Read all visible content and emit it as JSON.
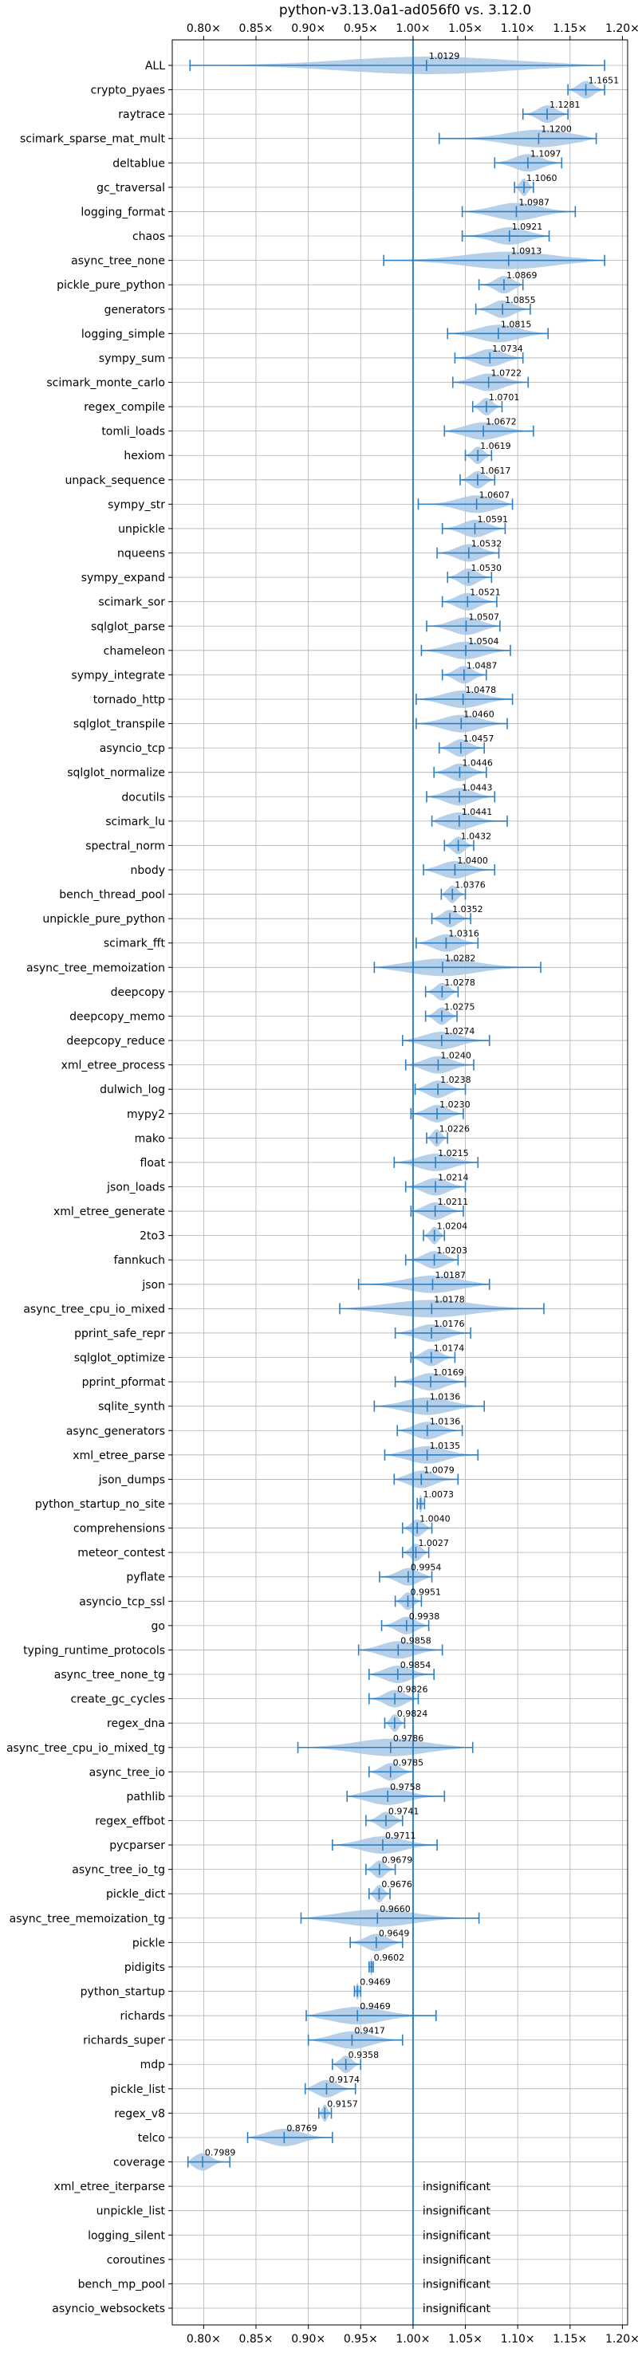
{
  "chart_data": {
    "type": "violin",
    "title": "python-v3.13.0a1-ad056f0 vs. 3.12.0",
    "xlim": [
      0.77,
      1.205
    ],
    "xticks": [
      0.8,
      0.85,
      0.9,
      0.95,
      1.0,
      1.05,
      1.1,
      1.15,
      1.2
    ],
    "xtick_labels": [
      "0.80×",
      "0.85×",
      "0.90×",
      "0.95×",
      "1.00×",
      "1.05×",
      "1.10×",
      "1.15×",
      "1.20×"
    ],
    "reference_line": 1.0,
    "grid": true,
    "insignificant_text": "insignificant",
    "benchmarks": [
      {
        "name": "ALL",
        "value": 1.0129,
        "min": 0.787,
        "max": 1.183
      },
      {
        "name": "crypto_pyaes",
        "value": 1.1651,
        "min": 1.148,
        "max": 1.183
      },
      {
        "name": "raytrace",
        "value": 1.1281,
        "min": 1.105,
        "max": 1.148
      },
      {
        "name": "scimark_sparse_mat_mult",
        "value": 1.12,
        "min": 1.025,
        "max": 1.175
      },
      {
        "name": "deltablue",
        "value": 1.1097,
        "min": 1.078,
        "max": 1.142
      },
      {
        "name": "gc_traversal",
        "value": 1.106,
        "min": 1.097,
        "max": 1.115
      },
      {
        "name": "logging_format",
        "value": 1.0987,
        "min": 1.047,
        "max": 1.155
      },
      {
        "name": "chaos",
        "value": 1.0921,
        "min": 1.047,
        "max": 1.13
      },
      {
        "name": "async_tree_none",
        "value": 1.0913,
        "min": 0.972,
        "max": 1.183
      },
      {
        "name": "pickle_pure_python",
        "value": 1.0869,
        "min": 1.063,
        "max": 1.105
      },
      {
        "name": "generators",
        "value": 1.0855,
        "min": 1.06,
        "max": 1.112
      },
      {
        "name": "logging_simple",
        "value": 1.0815,
        "min": 1.033,
        "max": 1.129
      },
      {
        "name": "sympy_sum",
        "value": 1.0734,
        "min": 1.04,
        "max": 1.105
      },
      {
        "name": "scimark_monte_carlo",
        "value": 1.0722,
        "min": 1.038,
        "max": 1.11
      },
      {
        "name": "regex_compile",
        "value": 1.0701,
        "min": 1.057,
        "max": 1.085
      },
      {
        "name": "tomli_loads",
        "value": 1.0672,
        "min": 1.03,
        "max": 1.115
      },
      {
        "name": "hexiom",
        "value": 1.0619,
        "min": 1.05,
        "max": 1.075
      },
      {
        "name": "unpack_sequence",
        "value": 1.0617,
        "min": 1.045,
        "max": 1.078
      },
      {
        "name": "sympy_str",
        "value": 1.0607,
        "min": 1.005,
        "max": 1.095
      },
      {
        "name": "unpickle",
        "value": 1.0591,
        "min": 1.028,
        "max": 1.088
      },
      {
        "name": "nqueens",
        "value": 1.0532,
        "min": 1.023,
        "max": 1.082
      },
      {
        "name": "sympy_expand",
        "value": 1.053,
        "min": 1.033,
        "max": 1.075
      },
      {
        "name": "scimark_sor",
        "value": 1.0521,
        "min": 1.028,
        "max": 1.08
      },
      {
        "name": "sqlglot_parse",
        "value": 1.0507,
        "min": 1.013,
        "max": 1.083
      },
      {
        "name": "chameleon",
        "value": 1.0504,
        "min": 1.008,
        "max": 1.093
      },
      {
        "name": "sympy_integrate",
        "value": 1.0487,
        "min": 1.028,
        "max": 1.07
      },
      {
        "name": "tornado_http",
        "value": 1.0478,
        "min": 1.003,
        "max": 1.095
      },
      {
        "name": "sqlglot_transpile",
        "value": 1.046,
        "min": 1.003,
        "max": 1.09
      },
      {
        "name": "asyncio_tcp",
        "value": 1.0457,
        "min": 1.025,
        "max": 1.068
      },
      {
        "name": "sqlglot_normalize",
        "value": 1.0446,
        "min": 1.02,
        "max": 1.07
      },
      {
        "name": "docutils",
        "value": 1.0443,
        "min": 1.013,
        "max": 1.078
      },
      {
        "name": "scimark_lu",
        "value": 1.0441,
        "min": 1.018,
        "max": 1.09
      },
      {
        "name": "spectral_norm",
        "value": 1.0432,
        "min": 1.03,
        "max": 1.058
      },
      {
        "name": "nbody",
        "value": 1.04,
        "min": 1.01,
        "max": 1.078
      },
      {
        "name": "bench_thread_pool",
        "value": 1.0376,
        "min": 1.027,
        "max": 1.05
      },
      {
        "name": "unpickle_pure_python",
        "value": 1.0352,
        "min": 1.018,
        "max": 1.055
      },
      {
        "name": "scimark_fft",
        "value": 1.0316,
        "min": 1.003,
        "max": 1.062
      },
      {
        "name": "async_tree_memoization",
        "value": 1.0282,
        "min": 0.963,
        "max": 1.122
      },
      {
        "name": "deepcopy",
        "value": 1.0278,
        "min": 1.012,
        "max": 1.043
      },
      {
        "name": "deepcopy_memo",
        "value": 1.0275,
        "min": 1.012,
        "max": 1.042
      },
      {
        "name": "deepcopy_reduce",
        "value": 1.0274,
        "min": 0.99,
        "max": 1.073
      },
      {
        "name": "xml_etree_process",
        "value": 1.024,
        "min": 0.993,
        "max": 1.058
      },
      {
        "name": "dulwich_log",
        "value": 1.0238,
        "min": 1.002,
        "max": 1.05
      },
      {
        "name": "mypy2",
        "value": 1.023,
        "min": 0.998,
        "max": 1.048
      },
      {
        "name": "mako",
        "value": 1.0226,
        "min": 1.013,
        "max": 1.033
      },
      {
        "name": "float",
        "value": 1.0215,
        "min": 0.982,
        "max": 1.062
      },
      {
        "name": "json_loads",
        "value": 1.0214,
        "min": 0.993,
        "max": 1.05
      },
      {
        "name": "xml_etree_generate",
        "value": 1.0211,
        "min": 0.998,
        "max": 1.048
      },
      {
        "name": "2to3",
        "value": 1.0204,
        "min": 1.01,
        "max": 1.03
      },
      {
        "name": "fannkuch",
        "value": 1.0203,
        "min": 0.993,
        "max": 1.043
      },
      {
        "name": "json",
        "value": 1.0187,
        "min": 0.948,
        "max": 1.073
      },
      {
        "name": "async_tree_cpu_io_mixed",
        "value": 1.0178,
        "min": 0.93,
        "max": 1.125
      },
      {
        "name": "pprint_safe_repr",
        "value": 1.0176,
        "min": 0.983,
        "max": 1.055
      },
      {
        "name": "sqlglot_optimize",
        "value": 1.0174,
        "min": 0.998,
        "max": 1.04
      },
      {
        "name": "pprint_pformat",
        "value": 1.0169,
        "min": 0.983,
        "max": 1.05
      },
      {
        "name": "sqlite_synth",
        "value": 1.0136,
        "min": 0.963,
        "max": 1.068
      },
      {
        "name": "async_generators",
        "value": 1.0136,
        "min": 0.985,
        "max": 1.047
      },
      {
        "name": "xml_etree_parse",
        "value": 1.0135,
        "min": 0.973,
        "max": 1.062
      },
      {
        "name": "json_dumps",
        "value": 1.0079,
        "min": 0.982,
        "max": 1.043
      },
      {
        "name": "python_startup_no_site",
        "value": 1.0073,
        "min": 1.004,
        "max": 1.011
      },
      {
        "name": "comprehensions",
        "value": 1.004,
        "min": 0.99,
        "max": 1.018
      },
      {
        "name": "meteor_contest",
        "value": 1.0027,
        "min": 0.99,
        "max": 1.015
      },
      {
        "name": "pyflate",
        "value": 0.9954,
        "min": 0.968,
        "max": 1.018
      },
      {
        "name": "asyncio_tcp_ssl",
        "value": 0.9951,
        "min": 0.983,
        "max": 1.008
      },
      {
        "name": "go",
        "value": 0.9938,
        "min": 0.97,
        "max": 1.015
      },
      {
        "name": "typing_runtime_protocols",
        "value": 0.9858,
        "min": 0.948,
        "max": 1.028
      },
      {
        "name": "async_tree_none_tg",
        "value": 0.9854,
        "min": 0.958,
        "max": 1.02
      },
      {
        "name": "create_gc_cycles",
        "value": 0.9826,
        "min": 0.958,
        "max": 1.005
      },
      {
        "name": "regex_dna",
        "value": 0.9824,
        "min": 0.973,
        "max": 0.992
      },
      {
        "name": "async_tree_cpu_io_mixed_tg",
        "value": 0.9786,
        "min": 0.89,
        "max": 1.057
      },
      {
        "name": "async_tree_io",
        "value": 0.9785,
        "min": 0.958,
        "max": 1.0
      },
      {
        "name": "pathlib",
        "value": 0.9758,
        "min": 0.937,
        "max": 1.03
      },
      {
        "name": "regex_effbot",
        "value": 0.9741,
        "min": 0.955,
        "max": 0.99
      },
      {
        "name": "pycparser",
        "value": 0.9711,
        "min": 0.923,
        "max": 1.023
      },
      {
        "name": "async_tree_io_tg",
        "value": 0.9679,
        "min": 0.955,
        "max": 0.983
      },
      {
        "name": "pickle_dict",
        "value": 0.9676,
        "min": 0.958,
        "max": 0.978
      },
      {
        "name": "async_tree_memoization_tg",
        "value": 0.966,
        "min": 0.893,
        "max": 1.063
      },
      {
        "name": "pickle",
        "value": 0.9649,
        "min": 0.94,
        "max": 0.99
      },
      {
        "name": "pidigits",
        "value": 0.9602,
        "min": 0.958,
        "max": 0.962
      },
      {
        "name": "python_startup",
        "value": 0.9469,
        "min": 0.944,
        "max": 0.95
      },
      {
        "name": "richards",
        "value": 0.9469,
        "min": 0.898,
        "max": 1.022
      },
      {
        "name": "richards_super",
        "value": 0.9417,
        "min": 0.9,
        "max": 0.99
      },
      {
        "name": "mdp",
        "value": 0.9358,
        "min": 0.923,
        "max": 0.95
      },
      {
        "name": "pickle_list",
        "value": 0.9174,
        "min": 0.897,
        "max": 0.945
      },
      {
        "name": "regex_v8",
        "value": 0.9157,
        "min": 0.91,
        "max": 0.922
      },
      {
        "name": "telco",
        "value": 0.8769,
        "min": 0.842,
        "max": 0.923
      },
      {
        "name": "coverage",
        "value": 0.7989,
        "min": 0.785,
        "max": 0.825
      },
      {
        "name": "xml_etree_iterparse",
        "value": null,
        "label": "insignificant"
      },
      {
        "name": "unpickle_list",
        "value": null,
        "label": "insignificant"
      },
      {
        "name": "logging_silent",
        "value": null,
        "label": "insignificant"
      },
      {
        "name": "coroutines",
        "value": null,
        "label": "insignificant"
      },
      {
        "name": "bench_mp_pool",
        "value": null,
        "label": "insignificant"
      },
      {
        "name": "asyncio_websockets",
        "value": null,
        "label": "insignificant"
      }
    ],
    "colors": {
      "violin": "#a9c8e6",
      "line": "#2f7fc1",
      "grid": "#b0b0b0",
      "axis": "#000000"
    }
  }
}
